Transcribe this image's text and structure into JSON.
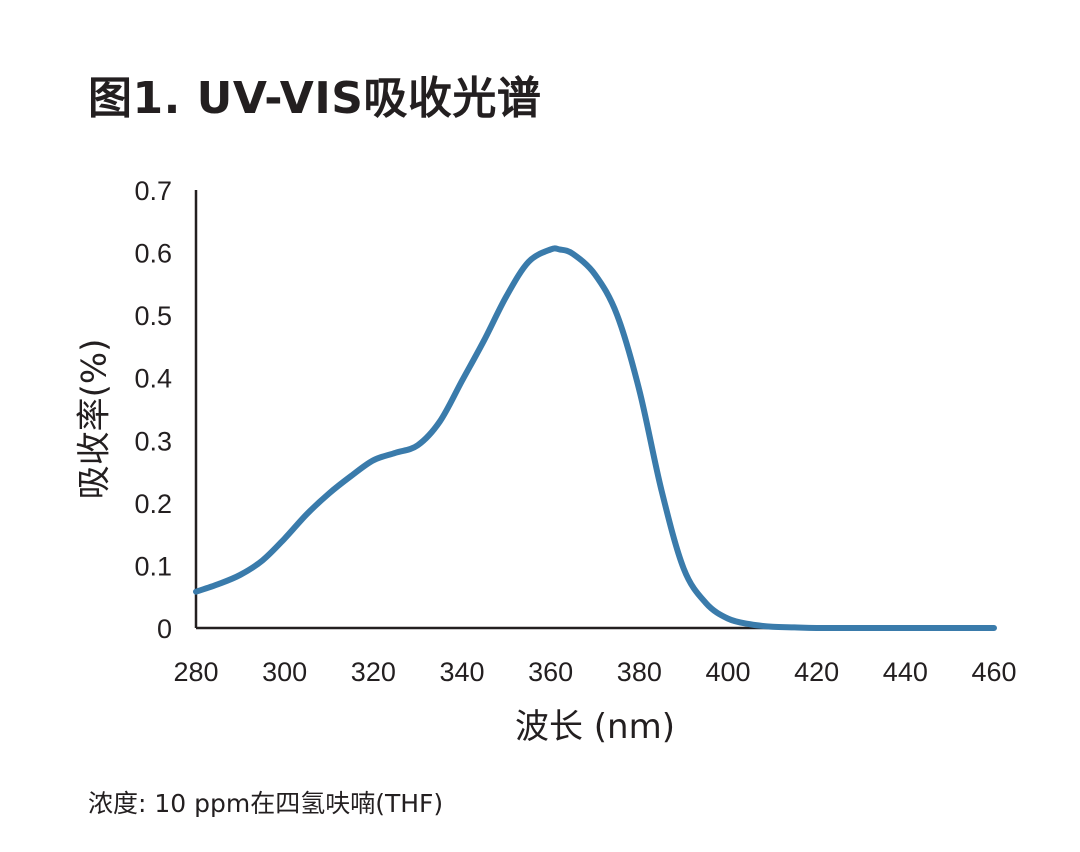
{
  "chart_data": {
    "type": "line",
    "title": "图1. UV-VIS吸收光谱",
    "xlabel": "波长 (nm)",
    "ylabel": "吸收率(%)",
    "note": "浓度:  10 ppm在四氢呋喃(THF)",
    "xlim": [
      280,
      460
    ],
    "ylim": [
      0,
      0.7
    ],
    "x_ticks": [
      "280",
      "300",
      "320",
      "340",
      "360",
      "380",
      "400",
      "420",
      "440",
      "460"
    ],
    "y_ticks": [
      "0",
      "0.1",
      "0.2",
      "0.3",
      "0.4",
      "0.5",
      "0.6",
      "0.7"
    ],
    "grid": false,
    "legend": "none",
    "line_color": "#3a7bab",
    "series": [
      {
        "x": [
          280,
          285,
          290,
          295,
          300,
          305,
          310,
          315,
          320,
          325,
          330,
          335,
          340,
          345,
          350,
          355,
          360,
          362,
          365,
          370,
          375,
          380,
          385,
          390,
          395,
          400,
          405,
          410,
          415,
          420,
          430,
          440,
          450,
          460
        ],
        "values": [
          0.058,
          0.07,
          0.085,
          0.108,
          0.143,
          0.182,
          0.215,
          0.243,
          0.268,
          0.28,
          0.292,
          0.33,
          0.395,
          0.46,
          0.53,
          0.585,
          0.605,
          0.605,
          0.598,
          0.565,
          0.5,
          0.38,
          0.22,
          0.095,
          0.04,
          0.015,
          0.006,
          0.002,
          0.001,
          0.0,
          0.0,
          0.0,
          0.0,
          0.0
        ]
      }
    ]
  }
}
